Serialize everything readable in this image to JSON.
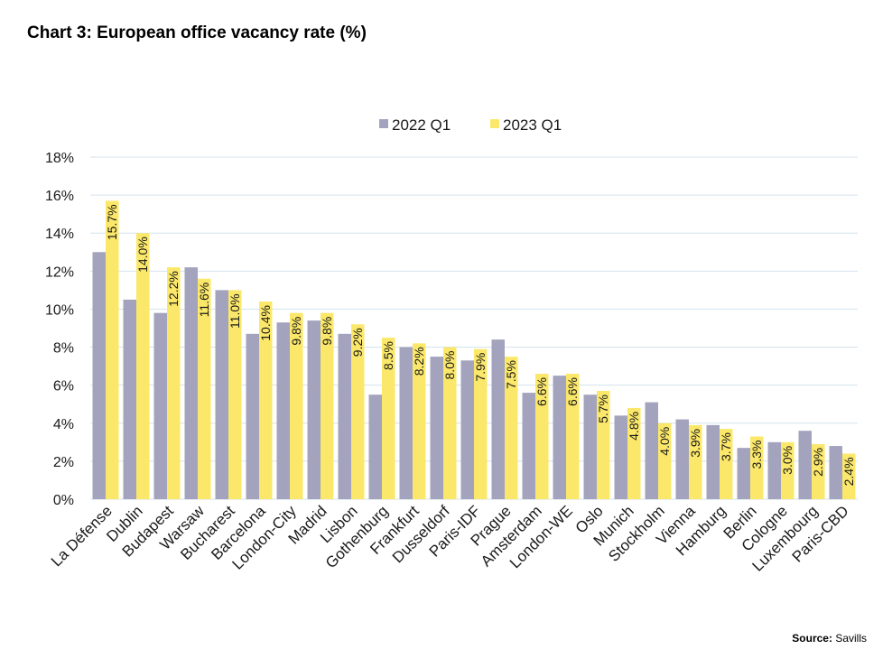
{
  "title": "Chart 3: European office vacancy rate (%)",
  "source": {
    "label": "Source:",
    "text": "Savills"
  },
  "colors": {
    "series_2022": "#A3A3BD",
    "series_2023": "#FBE86A",
    "grid": "#D4E3EE"
  },
  "chart_data": {
    "type": "bar",
    "title": "Chart 3: European office vacancy rate (%)",
    "xlabel": "",
    "ylabel": "",
    "ylim": [
      0,
      18
    ],
    "yticks": [
      0,
      2,
      4,
      6,
      8,
      10,
      12,
      14,
      16,
      18
    ],
    "ytick_suffix": "%",
    "grid": true,
    "legend_position": "top-center",
    "categories": [
      "La Défense",
      "Dublin",
      "Budapest",
      "Warsaw",
      "Bucharest",
      "Barcelona",
      "London-City",
      "Madrid",
      "Lisbon",
      "Gothenburg",
      "Frankfurt",
      "Dusseldorf",
      "Paris-IDF",
      "Prague",
      "Amsterdam",
      "London-WE",
      "Oslo",
      "Munich",
      "Stockholm",
      "Vienna",
      "Hamburg",
      "Berlin",
      "Cologne",
      "Luxembourg",
      "Paris-CBD"
    ],
    "series": [
      {
        "name": "2022 Q1",
        "values": [
          13.0,
          10.5,
          9.8,
          12.2,
          11.0,
          8.7,
          9.3,
          9.4,
          8.7,
          5.5,
          8.0,
          7.5,
          7.3,
          8.4,
          5.6,
          6.5,
          5.5,
          4.4,
          5.1,
          4.2,
          3.9,
          2.7,
          3.0,
          3.6,
          2.8
        ]
      },
      {
        "name": "2023 Q1",
        "values": [
          15.7,
          14.0,
          12.2,
          11.6,
          11.0,
          10.4,
          9.8,
          9.8,
          9.2,
          8.5,
          8.2,
          8.0,
          7.9,
          7.5,
          6.6,
          6.6,
          5.7,
          4.8,
          4.0,
          3.9,
          3.7,
          3.3,
          3.0,
          2.9,
          2.4
        ],
        "data_labels": [
          "15.7%",
          "14.0%",
          "12.2%",
          "11.6%",
          "11.0%",
          "10.4%",
          "9.8%",
          "9.8%",
          "9.2%",
          "8.5%",
          "8.2%",
          "8.0%",
          "7.9%",
          "7.5%",
          "6.6%",
          "6.6%",
          "5.7%",
          "4.8%",
          "4.0%",
          "3.9%",
          "3.7%",
          "3.3%",
          "3.0%",
          "2.9%",
          "2.4%"
        ]
      }
    ]
  }
}
